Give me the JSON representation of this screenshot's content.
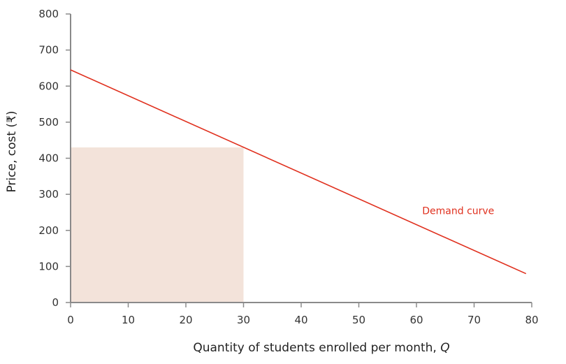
{
  "chart_data": {
    "type": "line",
    "title": "",
    "xlabel": "Quantity of students enrolled per month, ",
    "xlabel_italic": "Q",
    "ylabel": "Price, cost (₹)",
    "xlim": [
      0,
      80
    ],
    "ylim": [
      0,
      800
    ],
    "x_ticks": [
      0,
      10,
      20,
      30,
      40,
      50,
      60,
      70,
      80
    ],
    "y_ticks": [
      0,
      100,
      200,
      300,
      400,
      500,
      600,
      700,
      800
    ],
    "grid": false,
    "series": [
      {
        "name": "Demand curve",
        "color": "#e0301e",
        "x": [
          0,
          79
        ],
        "y": [
          645,
          80
        ]
      }
    ],
    "shaded_regions": [
      {
        "x": [
          0,
          30
        ],
        "y": [
          0,
          430
        ],
        "color": "#f3e3da"
      }
    ],
    "annotations": [
      {
        "text": "Demand curve",
        "x": 61,
        "y": 255,
        "color": "#e0301e"
      }
    ]
  }
}
